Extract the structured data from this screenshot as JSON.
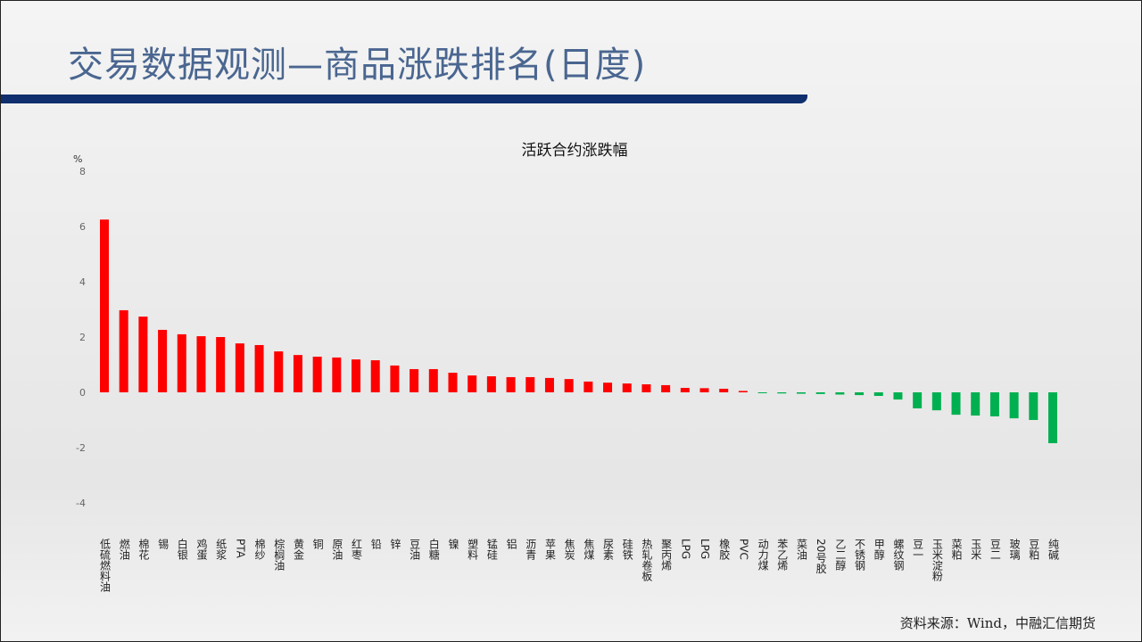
{
  "page_title": "交易数据观测—商品涨跌排名(日度)",
  "source": "资料来源：Wind，中融汇信期货",
  "colors": {
    "positive": "#ff0000",
    "negative": "#00b050",
    "title": "#4a6690",
    "band": "#0f2f6e"
  },
  "chart_data": {
    "type": "bar",
    "title": "活跃合约涨跌幅",
    "ylabel": "%",
    "ylim": [
      -4,
      8
    ],
    "yticks": [
      8,
      6,
      4,
      2,
      0,
      -2,
      -4
    ],
    "grid": false,
    "categories": [
      "低硫燃料油",
      "燃油",
      "棉花",
      "锡",
      "白银",
      "鸡蛋",
      "纸浆",
      "PTA",
      "棉纱",
      "棕榈油",
      "黄金",
      "铜",
      "原油",
      "红枣",
      "铅",
      "锌",
      "豆油",
      "白糖",
      "镍",
      "塑料",
      "锰硅",
      "铝",
      "沥青",
      "苹果",
      "焦炭",
      "焦煤",
      "尿素",
      "硅铁",
      "热轧卷板",
      "聚丙烯",
      "LPG",
      "LPG",
      "橡胶",
      "PVC",
      "动力煤",
      "苯乙烯",
      "菜油",
      "20号胶",
      "乙二醇",
      "不锈钢",
      "甲醇",
      "螺纹钢",
      "豆一",
      "玉米淀粉",
      "菜粕",
      "玉米",
      "豆二",
      "玻璃",
      "豆粕",
      "纯碱"
    ],
    "values": [
      6.25,
      2.97,
      2.74,
      2.26,
      2.1,
      2.03,
      2.0,
      1.77,
      1.71,
      1.48,
      1.35,
      1.29,
      1.26,
      1.19,
      1.16,
      0.97,
      0.84,
      0.84,
      0.71,
      0.61,
      0.58,
      0.55,
      0.55,
      0.52,
      0.48,
      0.39,
      0.35,
      0.32,
      0.29,
      0.26,
      0.16,
      0.15,
      0.13,
      0.05,
      -0.03,
      -0.04,
      -0.05,
      -0.06,
      -0.08,
      -0.1,
      -0.13,
      -0.26,
      -0.58,
      -0.65,
      -0.81,
      -0.84,
      -0.87,
      -0.94,
      -1.0,
      -1.84
    ]
  }
}
